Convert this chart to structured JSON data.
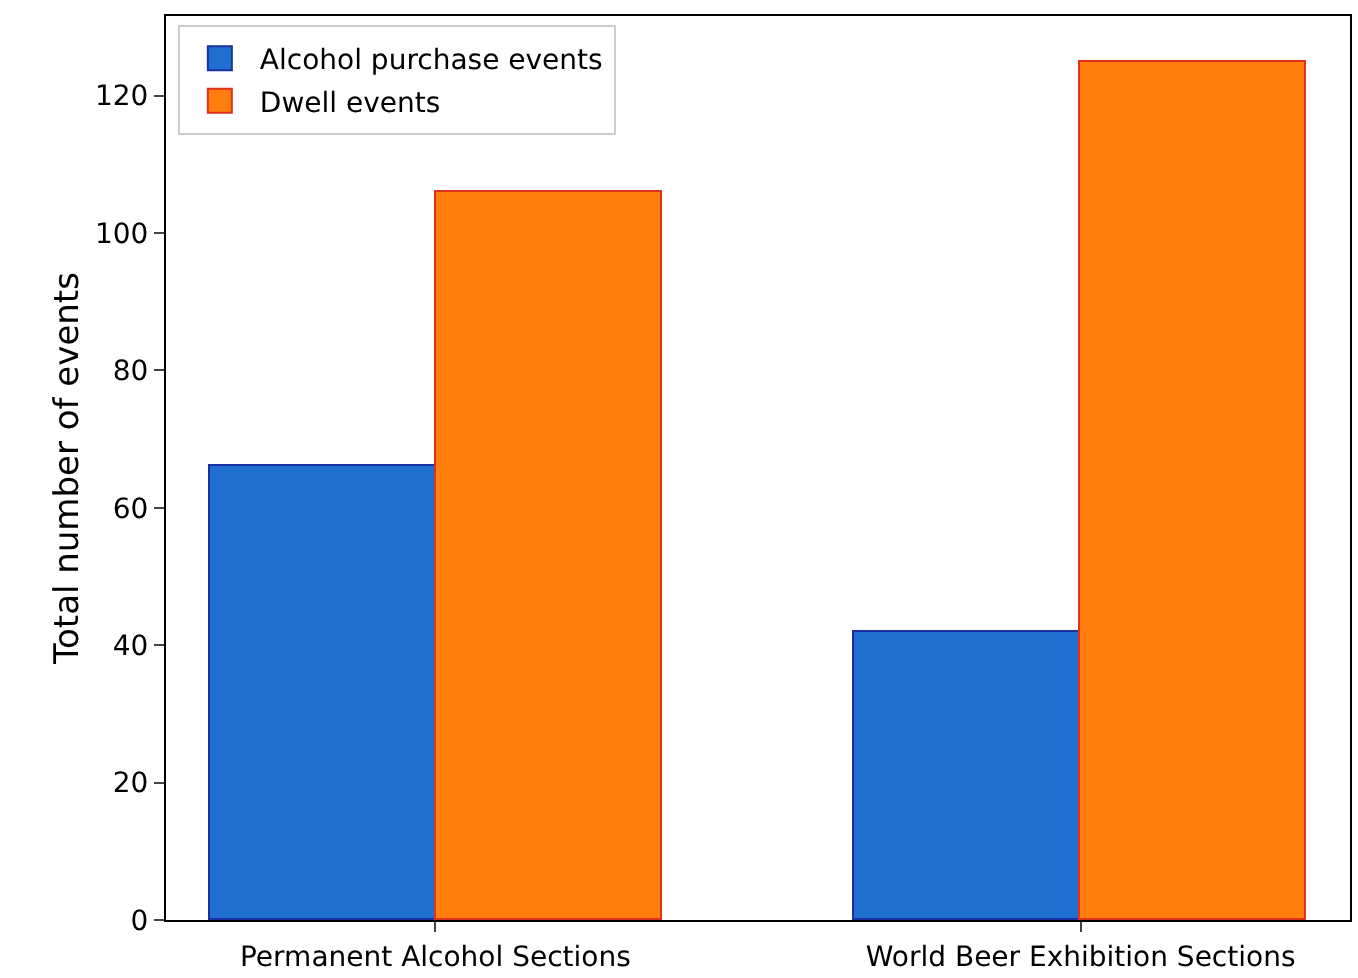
{
  "chart_data": {
    "type": "bar",
    "ylabel": "Total number of events",
    "categories": [
      "Permanent Alcohol Sections",
      "World Beer Exhibition Sections"
    ],
    "series": [
      {
        "name": "Alcohol purchase events",
        "color": "#1f6fd0",
        "values": [
          66,
          42
        ]
      },
      {
        "name": "Dwell events",
        "color": "#ff7f0e",
        "values": [
          106,
          125
        ]
      }
    ],
    "ylim": [
      0,
      131.6
    ],
    "yticks": [
      0,
      20,
      40,
      60,
      80,
      100,
      120
    ],
    "grid": false,
    "legend": "top left"
  }
}
